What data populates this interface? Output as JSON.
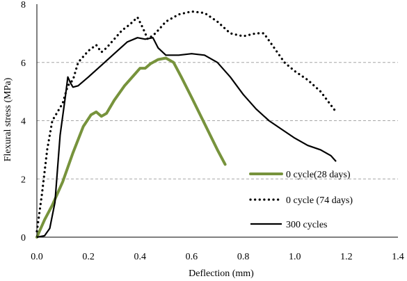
{
  "chart_data": {
    "type": "line",
    "title": "",
    "xlabel": "Deflection (mm)",
    "ylabel": "Flexural stress (MPa)",
    "xlim": [
      0,
      1.4
    ],
    "ylim": [
      0,
      8
    ],
    "x_ticks": [
      "0.0",
      "0.2",
      "0.4",
      "0.6",
      "0.8",
      "1.0",
      "1.2",
      "1.4"
    ],
    "y_ticks": [
      "0",
      "2",
      "4",
      "6",
      "8"
    ],
    "grid": "horizontal dashed at y=2,4,6",
    "legend_position": "bottom-right inside plot",
    "series": [
      {
        "name": "0 cycle(28 days)",
        "color": "#77933c",
        "style": "solid-thick",
        "x": [
          0.0,
          0.03,
          0.06,
          0.1,
          0.14,
          0.18,
          0.21,
          0.23,
          0.25,
          0.27,
          0.3,
          0.34,
          0.38,
          0.4,
          0.42,
          0.44,
          0.47,
          0.5,
          0.53,
          0.56,
          0.6,
          0.65,
          0.7,
          0.73
        ],
        "values": [
          0.0,
          0.6,
          1.1,
          1.9,
          2.9,
          3.8,
          4.2,
          4.3,
          4.15,
          4.25,
          4.7,
          5.2,
          5.6,
          5.8,
          5.8,
          5.95,
          6.1,
          6.15,
          6.0,
          5.5,
          4.8,
          3.9,
          3.0,
          2.5
        ]
      },
      {
        "name": "0 cycle (74 days)",
        "color": "#000000",
        "style": "dotted",
        "x": [
          0.0,
          0.02,
          0.04,
          0.06,
          0.08,
          0.1,
          0.12,
          0.14,
          0.16,
          0.2,
          0.23,
          0.25,
          0.27,
          0.3,
          0.33,
          0.36,
          0.39,
          0.41,
          0.43,
          0.46,
          0.5,
          0.55,
          0.6,
          0.65,
          0.7,
          0.75,
          0.8,
          0.85,
          0.88,
          0.92,
          0.96,
          1.0,
          1.05,
          1.1,
          1.16
        ],
        "values": [
          0.2,
          1.5,
          3.0,
          4.0,
          4.3,
          4.6,
          5.2,
          5.4,
          6.0,
          6.4,
          6.6,
          6.35,
          6.5,
          6.8,
          7.1,
          7.3,
          7.55,
          7.2,
          6.8,
          7.0,
          7.4,
          7.65,
          7.75,
          7.7,
          7.4,
          7.0,
          6.9,
          7.0,
          7.0,
          6.5,
          6.0,
          5.7,
          5.4,
          5.0,
          4.3
        ]
      },
      {
        "name": "300 cycles",
        "color": "#000000",
        "style": "solid",
        "x": [
          0.0,
          0.03,
          0.05,
          0.07,
          0.09,
          0.11,
          0.12,
          0.13,
          0.14,
          0.16,
          0.2,
          0.25,
          0.3,
          0.35,
          0.39,
          0.42,
          0.45,
          0.47,
          0.5,
          0.55,
          0.6,
          0.65,
          0.7,
          0.75,
          0.8,
          0.85,
          0.9,
          0.95,
          1.0,
          1.05,
          1.1,
          1.14,
          1.16
        ],
        "values": [
          0.0,
          0.05,
          0.3,
          1.2,
          3.5,
          4.8,
          5.5,
          5.3,
          5.15,
          5.2,
          5.5,
          5.9,
          6.3,
          6.7,
          6.85,
          6.8,
          6.85,
          6.5,
          6.25,
          6.25,
          6.3,
          6.25,
          6.0,
          5.5,
          4.9,
          4.4,
          4.0,
          3.7,
          3.4,
          3.15,
          3.0,
          2.8,
          2.6
        ]
      }
    ]
  }
}
